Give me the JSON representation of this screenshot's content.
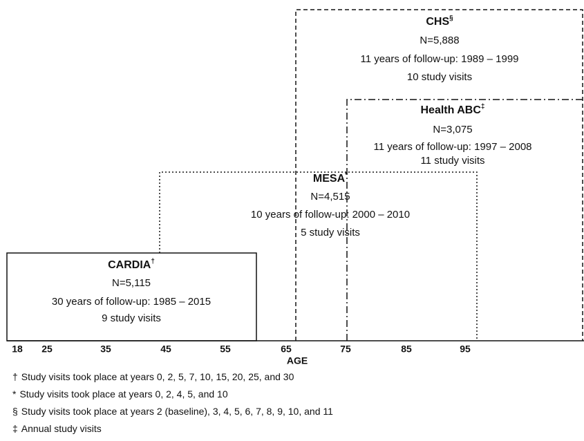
{
  "studies": [
    {
      "name": "CHS",
      "mark": "§",
      "n": "N=5,888",
      "followup": "11 years of follow-up: 1989 – 1999",
      "visits": "10 study visits"
    },
    {
      "name": "Health ABC",
      "mark": "‡",
      "n": "N=3,075",
      "followup": "11 years of follow-up: 1997 – 2008",
      "visits": "11 study visits"
    },
    {
      "name": "MESA",
      "mark": "*",
      "n": "N=4,515",
      "followup": "10 years of follow-up: 2000 – 2010",
      "visits": "5 study visits"
    },
    {
      "name": "CARDIA",
      "mark": "†",
      "n": "N=5,115",
      "followup": "30 years of follow-up: 1985 – 2015",
      "visits": "9 study visits"
    }
  ],
  "axis": {
    "label": "AGE",
    "ticks": [
      "18",
      "25",
      "35",
      "45",
      "55",
      "65",
      "75",
      "85",
      "95"
    ]
  },
  "footnotes": [
    {
      "mark": "†",
      "text": "Study visits took place at years 0, 2, 5, 7, 10, 15, 20, 25, and 30"
    },
    {
      "mark": "*",
      "text": "Study visits took place at years 0, 2, 4, 5, and 10"
    },
    {
      "mark": "§",
      "text": "Study visits took place at years 2 (baseline), 3, 4, 5, 6, 7, 8, 9, 10, and 11"
    },
    {
      "mark": "‡",
      "text": "Annual study visits"
    }
  ]
}
